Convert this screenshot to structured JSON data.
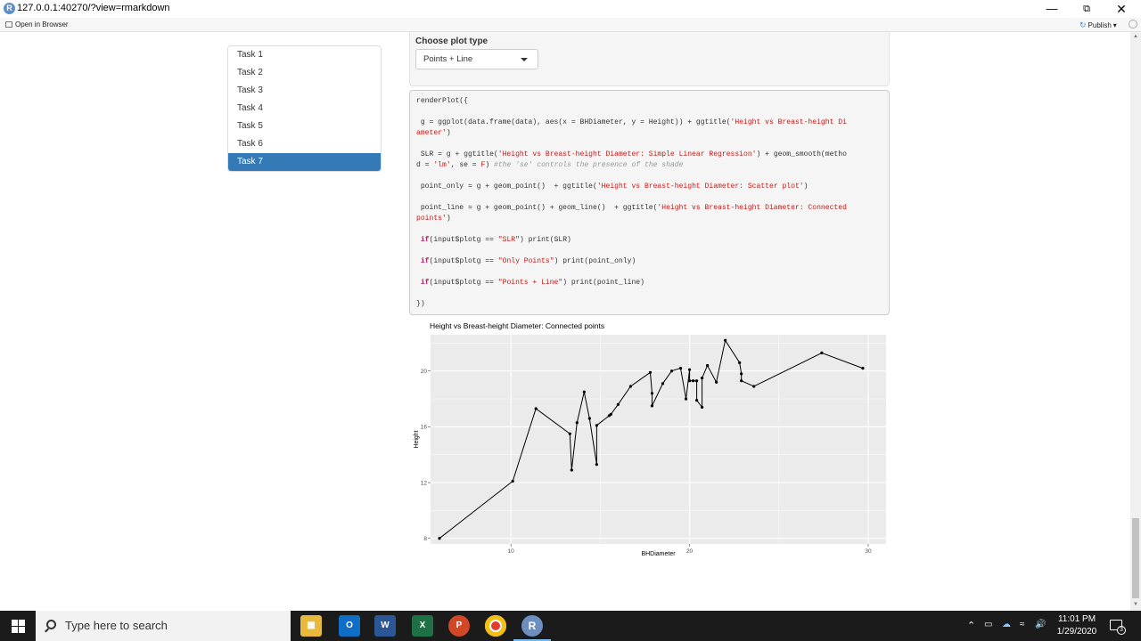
{
  "window": {
    "url": "127.0.0.1:40270/?view=rmarkdown",
    "open_in_browser": "Open in Browser",
    "publish": "Publish"
  },
  "sidebar": {
    "items": [
      {
        "label": "Task 1"
      },
      {
        "label": "Task 2"
      },
      {
        "label": "Task 3"
      },
      {
        "label": "Task 4"
      },
      {
        "label": "Task 5"
      },
      {
        "label": "Task 6"
      },
      {
        "label": "Task 7",
        "active": true
      }
    ]
  },
  "controls": {
    "plot_type_label": "Choose plot type",
    "plot_type_value": "Points + Line"
  },
  "code_lines": [
    "renderPlot({",
    "",
    " g = ggplot(data.frame(data), aes(x = BHDiameter, y = Height)) + ggtitle('Height vs Breast-height Di",
    "ameter')",
    "",
    " SLR = g + ggtitle('Height vs Breast-height Diameter: Simple Linear Regression') + geom_smooth(metho",
    "d = 'lm', se = F) #the 'se' controls the presence of the shade",
    "",
    " point_only = g + geom_point()  + ggtitle('Height vs Breast-height Diameter: Scatter plot')",
    "",
    " point_line = g + geom_point() + geom_line()  + ggtitle('Height vs Breast-height Diameter: Connected",
    "points')",
    "",
    " if(input$plotg == \"SLR\") print(SLR)",
    "",
    " if(input$plotg == \"Only Points\") print(point_only)",
    "",
    " if(input$plotg == \"Points + Line\") print(point_line)",
    "",
    "})"
  ],
  "chart_data": {
    "type": "line",
    "title": "Height vs Breast-height Diameter: Connected points",
    "xlabel": "BHDiameter",
    "ylabel": "Height",
    "xlim": [
      5.5,
      31
    ],
    "ylim": [
      7.6,
      22.6
    ],
    "xticks": [
      10,
      20,
      30
    ],
    "yticks": [
      8,
      12,
      16,
      20
    ],
    "grid": true,
    "points": [
      [
        6.0,
        8.0
      ],
      [
        10.1,
        12.1
      ],
      [
        11.4,
        17.3
      ],
      [
        13.3,
        15.5
      ],
      [
        13.4,
        12.9
      ],
      [
        13.7,
        16.3
      ],
      [
        14.1,
        18.5
      ],
      [
        14.4,
        16.6
      ],
      [
        14.8,
        13.3
      ],
      [
        14.8,
        16.1
      ],
      [
        15.5,
        16.8
      ],
      [
        15.6,
        16.9
      ],
      [
        16.0,
        17.6
      ],
      [
        16.7,
        18.9
      ],
      [
        17.8,
        19.9
      ],
      [
        17.9,
        18.4
      ],
      [
        17.9,
        17.5
      ],
      [
        18.5,
        19.1
      ],
      [
        19.0,
        20.0
      ],
      [
        19.5,
        20.2
      ],
      [
        19.8,
        18.0
      ],
      [
        20.0,
        20.1
      ],
      [
        20.0,
        19.3
      ],
      [
        20.2,
        19.3
      ],
      [
        20.4,
        19.3
      ],
      [
        20.4,
        17.9
      ],
      [
        20.7,
        17.4
      ],
      [
        20.7,
        19.5
      ],
      [
        21.0,
        20.4
      ],
      [
        21.5,
        19.2
      ],
      [
        22.0,
        22.2
      ],
      [
        22.8,
        20.6
      ],
      [
        22.9,
        19.8
      ],
      [
        22.9,
        19.3
      ],
      [
        23.6,
        18.9
      ],
      [
        27.4,
        21.3
      ],
      [
        29.7,
        20.2
      ]
    ]
  },
  "taskbar": {
    "search_placeholder": "Type here to search",
    "time": "11:01 PM",
    "date": "1/29/2020",
    "notification_count": "3",
    "apps": [
      "file-explorer",
      "outlook",
      "word",
      "excel",
      "powerpoint",
      "chrome",
      "r-app"
    ]
  }
}
